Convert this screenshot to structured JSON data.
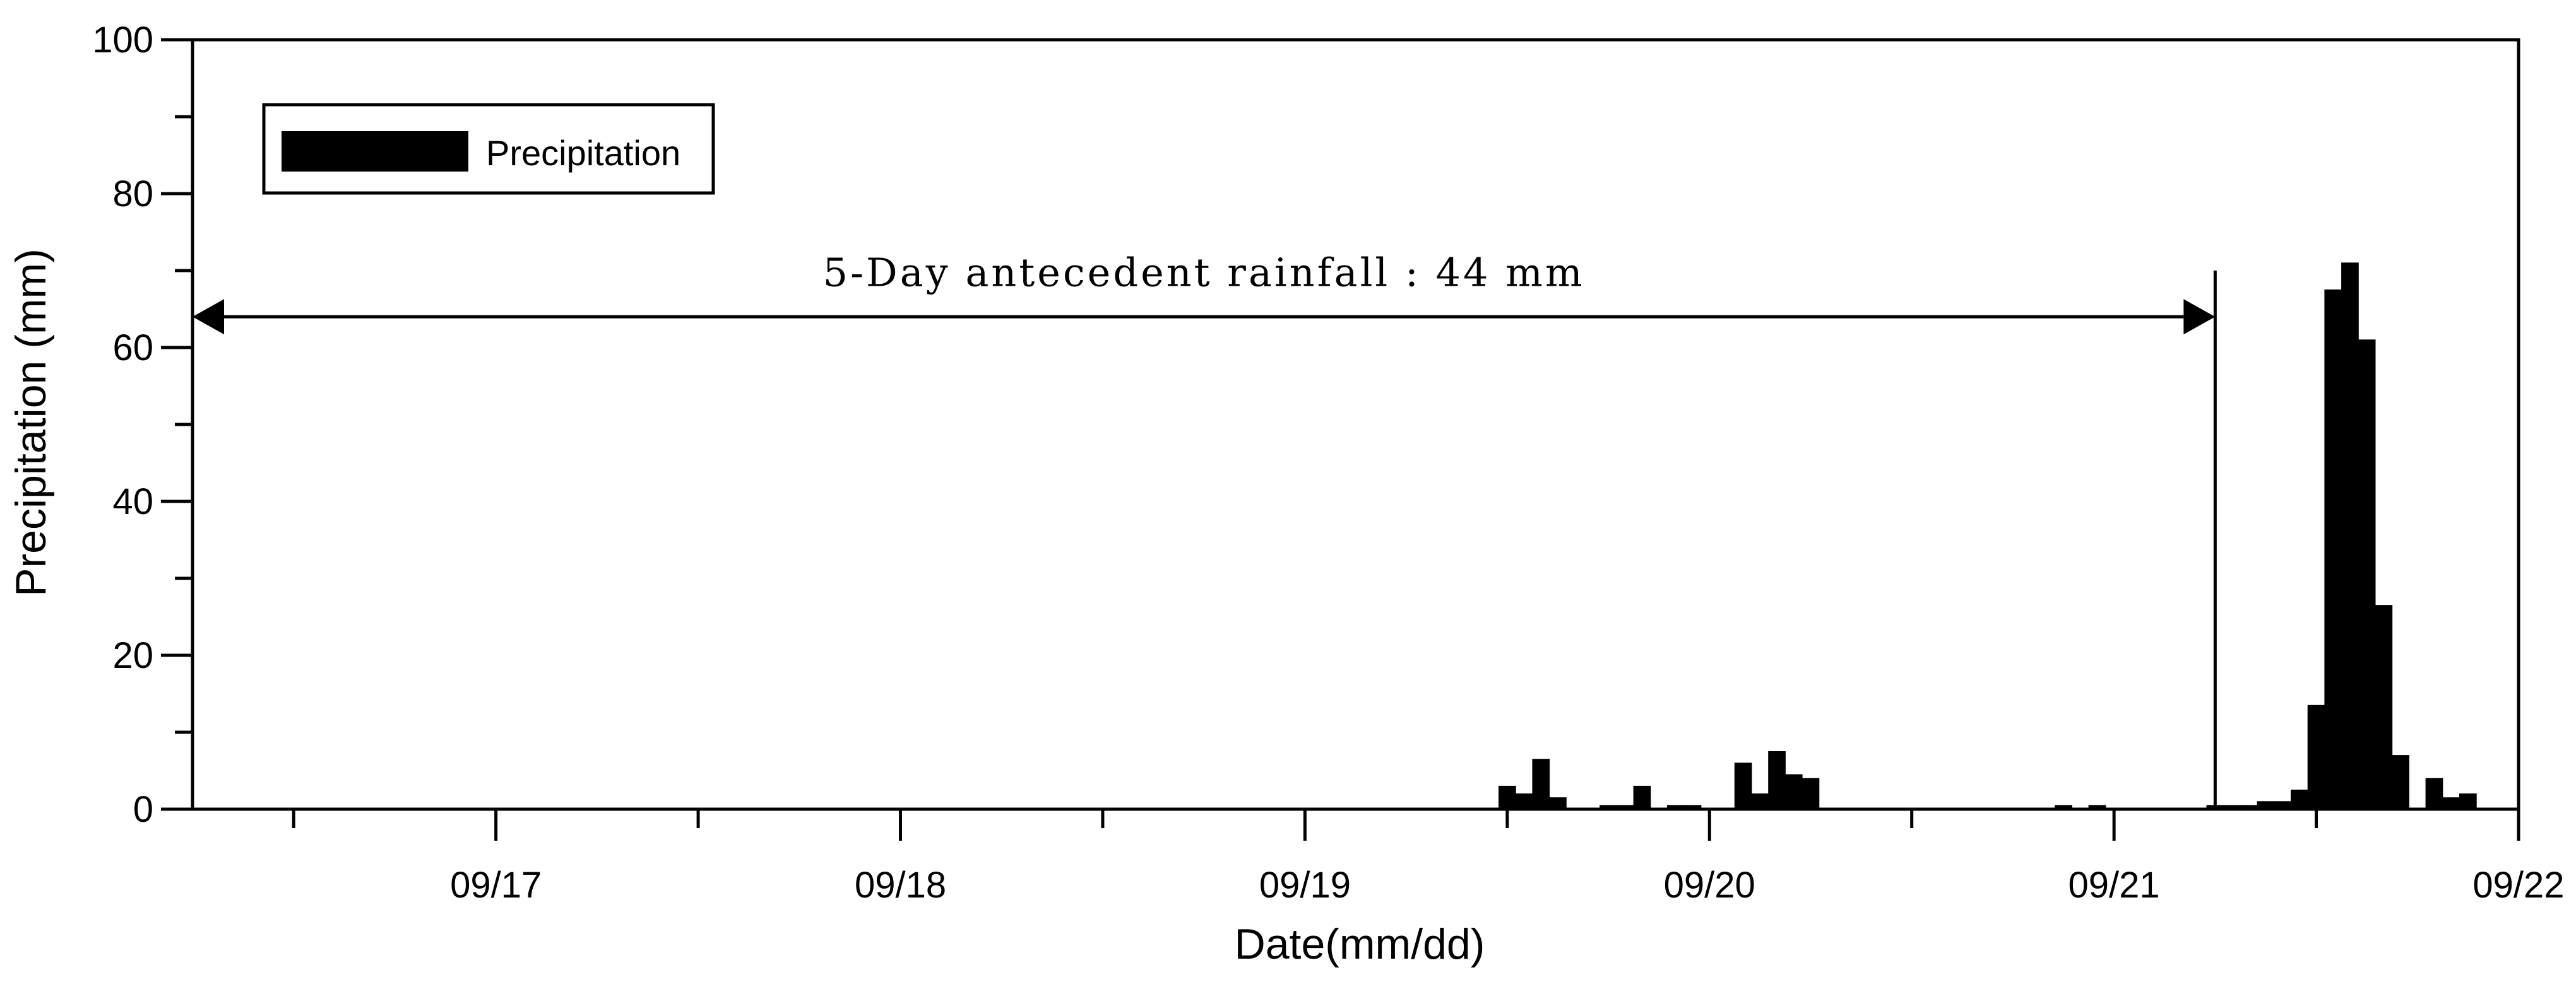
{
  "chart_data": {
    "type": "bar",
    "xlabel": "Date(mm/dd)",
    "ylabel": "Precipitation (mm)",
    "ylim": [
      0,
      100
    ],
    "yticks": [
      0,
      20,
      40,
      60,
      80,
      100
    ],
    "xlim": [
      "09/16 06:00",
      "09/22 00:00"
    ],
    "xticks": [
      "09/17",
      "09/18",
      "09/19",
      "09/20",
      "09/21",
      "09/22"
    ],
    "bar_interval_hours": 1,
    "grid": false,
    "legend": {
      "position": "top-left",
      "entries": [
        "Precipitation"
      ]
    },
    "annotation": {
      "text": "5-Day antecedent rainfall : 44 mm",
      "from": "09/16 06:00",
      "to": "09/21 06:00"
    },
    "series": [
      {
        "name": "Precipitation",
        "color": "#000000",
        "points": [
          {
            "x": "09/19 12:00",
            "y": 3.0
          },
          {
            "x": "09/19 13:00",
            "y": 2.0
          },
          {
            "x": "09/19 14:00",
            "y": 6.5
          },
          {
            "x": "09/19 15:00",
            "y": 1.5
          },
          {
            "x": "09/19 18:00",
            "y": 0.5
          },
          {
            "x": "09/19 19:00",
            "y": 0.5
          },
          {
            "x": "09/19 20:00",
            "y": 3.0
          },
          {
            "x": "09/19 22:00",
            "y": 0.5
          },
          {
            "x": "09/19 23:00",
            "y": 0.5
          },
          {
            "x": "09/20 02:00",
            "y": 6.0
          },
          {
            "x": "09/20 03:00",
            "y": 2.0
          },
          {
            "x": "09/20 04:00",
            "y": 7.5
          },
          {
            "x": "09/20 05:00",
            "y": 4.5
          },
          {
            "x": "09/20 06:00",
            "y": 4.0
          },
          {
            "x": "09/20 21:00",
            "y": 0.5
          },
          {
            "x": "09/20 23:00",
            "y": 0.5
          },
          {
            "x": "09/21 06:00",
            "y": 0.5
          },
          {
            "x": "09/21 07:00",
            "y": 0.5
          },
          {
            "x": "09/21 08:00",
            "y": 0.5
          },
          {
            "x": "09/21 09:00",
            "y": 1.0
          },
          {
            "x": "09/21 10:00",
            "y": 1.0
          },
          {
            "x": "09/21 11:00",
            "y": 2.5
          },
          {
            "x": "09/21 12:00",
            "y": 13.5
          },
          {
            "x": "09/21 13:00",
            "y": 67.5
          },
          {
            "x": "09/21 14:00",
            "y": 71.0
          },
          {
            "x": "09/21 15:00",
            "y": 61.0
          },
          {
            "x": "09/21 16:00",
            "y": 26.5
          },
          {
            "x": "09/21 17:00",
            "y": 7.0
          },
          {
            "x": "09/21 19:00",
            "y": 4.0
          },
          {
            "x": "09/21 20:00",
            "y": 1.5
          },
          {
            "x": "09/21 21:00",
            "y": 2.0
          }
        ]
      }
    ]
  }
}
